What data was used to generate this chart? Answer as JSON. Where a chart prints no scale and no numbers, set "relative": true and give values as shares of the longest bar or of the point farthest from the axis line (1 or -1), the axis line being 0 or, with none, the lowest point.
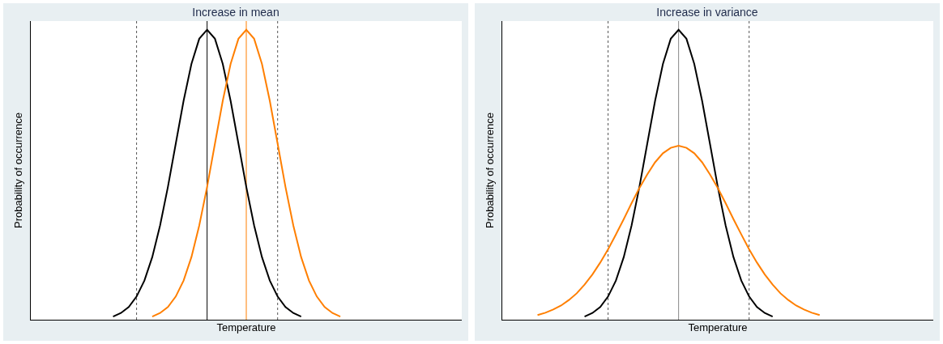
{
  "chart_data": [
    {
      "type": "line",
      "title": "Increase in mean",
      "xlabel": "Temperature",
      "ylabel": "Probability of occurrence",
      "relative": true,
      "marker": "none",
      "line_style": "solid",
      "categories": [
        null,
        null,
        null,
        null,
        null,
        null,
        null,
        null,
        null,
        null,
        null,
        null,
        null,
        null,
        null,
        null,
        null,
        null,
        null,
        null,
        null,
        null,
        null,
        null,
        null,
        null,
        null,
        null,
        null,
        null,
        null,
        null,
        null,
        null,
        null,
        null,
        null,
        null,
        null,
        null,
        null,
        null,
        null,
        null,
        null,
        null,
        null,
        null,
        null,
        null,
        null,
        null,
        null,
        null,
        null
      ],
      "series": [
        {
          "color": "#000000",
          "values": [
            null,
            null,
            null,
            null,
            null,
            null,
            null,
            null,
            null,
            null,
            0.011,
            0.023,
            0.044,
            0.08,
            0.135,
            0.216,
            0.325,
            0.458,
            0.607,
            0.755,
            0.882,
            0.969,
            1,
            0.969,
            0.882,
            0.755,
            0.607,
            0.458,
            0.325,
            0.216,
            0.135,
            0.08,
            0.044,
            0.023,
            0.011,
            null,
            null,
            null,
            null,
            null,
            null,
            null,
            null,
            null,
            null,
            null,
            null,
            null,
            null,
            null,
            null,
            null,
            null,
            null,
            null
          ]
        },
        {
          "color": "#ff7f00",
          "values": [
            null,
            null,
            null,
            null,
            null,
            null,
            null,
            null,
            null,
            null,
            null,
            null,
            null,
            null,
            null,
            0.011,
            0.023,
            0.044,
            0.08,
            0.135,
            0.216,
            0.325,
            0.458,
            0.607,
            0.755,
            0.882,
            0.969,
            1,
            0.969,
            0.882,
            0.755,
            0.607,
            0.458,
            0.325,
            0.216,
            0.135,
            0.08,
            0.044,
            0.023,
            0.011,
            null,
            null,
            null,
            null,
            null,
            null,
            null,
            null,
            null,
            null,
            null,
            null,
            null,
            null,
            null
          ]
        }
      ]
    },
    {
      "type": "line",
      "title": "Increase in variance",
      "xlabel": "Temperature",
      "ylabel": "Probability of occurrence",
      "relative": true,
      "marker": "none",
      "line_style": "solid",
      "categories": [
        null,
        null,
        null,
        null,
        null,
        null,
        null,
        null,
        null,
        null,
        null,
        null,
        null,
        null,
        null,
        null,
        null,
        null,
        null,
        null,
        null,
        null,
        null,
        null,
        null,
        null,
        null,
        null,
        null,
        null,
        null,
        null,
        null,
        null,
        null,
        null,
        null,
        null,
        null,
        null,
        null,
        null,
        null,
        null,
        null,
        null,
        null,
        null,
        null,
        null,
        null,
        null,
        null,
        null,
        null
      ],
      "series": [
        {
          "color": "#000000",
          "values": [
            null,
            null,
            null,
            null,
            null,
            null,
            null,
            null,
            null,
            null,
            0.011,
            0.023,
            0.044,
            0.08,
            0.135,
            0.216,
            0.325,
            0.458,
            0.607,
            0.755,
            0.882,
            0.969,
            1,
            0.969,
            0.882,
            0.755,
            0.607,
            0.458,
            0.325,
            0.216,
            0.135,
            0.08,
            0.044,
            0.023,
            0.011,
            null,
            null,
            null,
            null,
            null,
            null,
            null,
            null,
            null,
            null,
            null,
            null,
            null,
            null,
            null,
            null,
            null,
            null,
            null,
            null
          ]
        },
        {
          "color": "#ff7f00",
          "values": [
            null,
            null,
            null,
            null,
            0.016,
            0.024,
            0.035,
            0.049,
            0.068,
            0.091,
            0.121,
            0.156,
            0.197,
            0.243,
            0.294,
            0.347,
            0.402,
            0.454,
            0.501,
            0.543,
            0.574,
            0.593,
            0.6,
            0.593,
            0.574,
            0.543,
            0.501,
            0.454,
            0.402,
            0.347,
            0.294,
            0.243,
            0.197,
            0.156,
            0.121,
            0.091,
            0.068,
            0.049,
            0.035,
            0.024,
            0.016,
            null,
            null,
            null,
            null,
            null,
            null,
            null,
            null,
            null,
            null,
            null,
            null,
            null,
            null
          ]
        }
      ]
    }
  ]
}
